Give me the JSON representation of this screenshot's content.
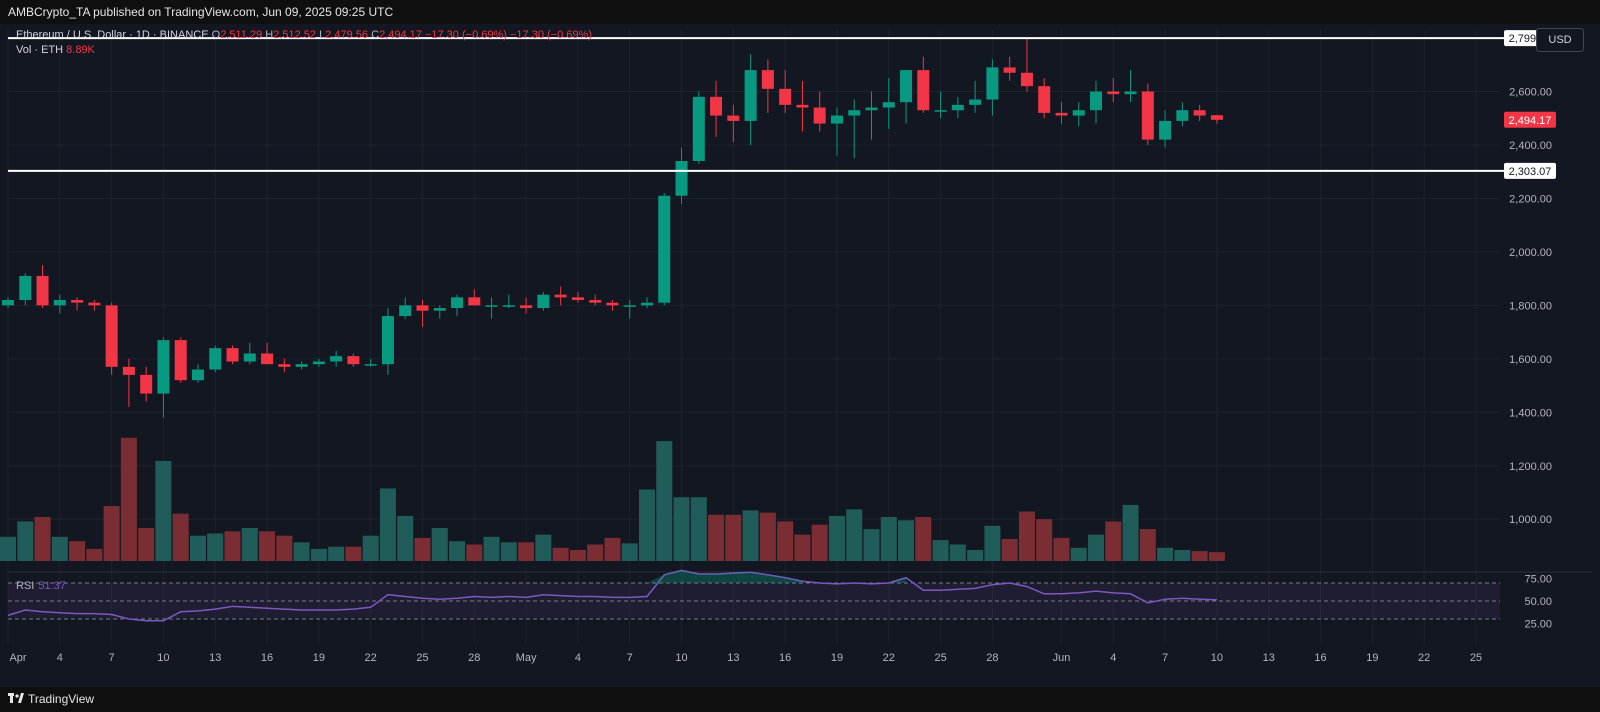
{
  "header": {
    "publisher": "AMBCrypto_TA published on TradingView.com, Jun 09, 2025 09:25 UTC"
  },
  "legend": {
    "symbol": "Ethereum / U.S. Dollar · 1D · BINANCE",
    "o_label": "O",
    "o": "2,511.29",
    "h_label": "H",
    "h": "2,512.52",
    "l_label": "L",
    "l": "2,479.56",
    "c_label": "C",
    "c": "2,494.17",
    "change1": "−17.30 (−0.69%)",
    "change2": "−17.30 (−0.69%)",
    "vol_label": "Vol · ETH",
    "vol_value": "8.89K"
  },
  "toolbar": {
    "currency": "USD"
  },
  "rsi": {
    "label": "RSI",
    "value": "51.37"
  },
  "footer": {
    "brand": "TradingView"
  },
  "colors": {
    "background": "#131722",
    "up": "#089981",
    "down": "#f23645",
    "up_volume": "#1f5c5a",
    "down_volume": "#7a2e33",
    "rsi_line": "#7e57c2",
    "grid": "#1e222d"
  },
  "chart_data": {
    "type": "candlestick",
    "symbol": "ETHUSD",
    "timeframe": "1D",
    "price_range": [
      840,
      2830
    ],
    "price_ticks": [
      1000,
      1200,
      1400,
      1600,
      1800,
      2000,
      2200,
      2400,
      2600
    ],
    "price_tick_labels": [
      "1,000.00",
      "1,200.00",
      "1,400.00",
      "1,600.00",
      "1,800.00",
      "2,000.00",
      "2,200.00",
      "2,400.00",
      "2,600.00"
    ],
    "horizontal_levels": [
      {
        "value": 2799.48,
        "label": "2,799.48"
      },
      {
        "value": 2303.07,
        "label": "2,303.07"
      }
    ],
    "last_price": {
      "value": 2494.17,
      "label": "2,494.17"
    },
    "x_ticks": [
      {
        "index": 0,
        "label": "Apr"
      },
      {
        "index": 3,
        "label": "4"
      },
      {
        "index": 6,
        "label": "7"
      },
      {
        "index": 9,
        "label": "10"
      },
      {
        "index": 12,
        "label": "13"
      },
      {
        "index": 15,
        "label": "16"
      },
      {
        "index": 18,
        "label": "19"
      },
      {
        "index": 21,
        "label": "22"
      },
      {
        "index": 24,
        "label": "25"
      },
      {
        "index": 27,
        "label": "28"
      },
      {
        "index": 30,
        "label": "May"
      },
      {
        "index": 33,
        "label": "4"
      },
      {
        "index": 36,
        "label": "7"
      },
      {
        "index": 39,
        "label": "10"
      },
      {
        "index": 42,
        "label": "13"
      },
      {
        "index": 45,
        "label": "16"
      },
      {
        "index": 48,
        "label": "19"
      },
      {
        "index": 51,
        "label": "22"
      },
      {
        "index": 54,
        "label": "25"
      },
      {
        "index": 57,
        "label": "28"
      },
      {
        "index": 61,
        "label": "Jun"
      },
      {
        "index": 64,
        "label": "4"
      },
      {
        "index": 67,
        "label": "7"
      },
      {
        "index": 70,
        "label": "10"
      },
      {
        "index": 73,
        "label": "13"
      },
      {
        "index": 76,
        "label": "16"
      },
      {
        "index": 79,
        "label": "19"
      },
      {
        "index": 82,
        "label": "22"
      },
      {
        "index": 85,
        "label": "25"
      }
    ],
    "ohlc": [
      [
        1800,
        1830,
        1790,
        1820
      ],
      [
        1820,
        1920,
        1800,
        1910
      ],
      [
        1910,
        1950,
        1790,
        1800
      ],
      [
        1800,
        1840,
        1770,
        1820
      ],
      [
        1820,
        1830,
        1780,
        1810
      ],
      [
        1810,
        1820,
        1780,
        1800
      ],
      [
        1800,
        1810,
        1540,
        1570
      ],
      [
        1570,
        1600,
        1420,
        1540
      ],
      [
        1540,
        1570,
        1440,
        1470
      ],
      [
        1470,
        1680,
        1380,
        1670
      ],
      [
        1670,
        1680,
        1510,
        1520
      ],
      [
        1520,
        1580,
        1510,
        1560
      ],
      [
        1560,
        1650,
        1550,
        1640
      ],
      [
        1640,
        1650,
        1580,
        1590
      ],
      [
        1590,
        1660,
        1580,
        1620
      ],
      [
        1620,
        1660,
        1580,
        1580
      ],
      [
        1580,
        1600,
        1550,
        1570
      ],
      [
        1570,
        1590,
        1560,
        1580
      ],
      [
        1580,
        1600,
        1570,
        1590
      ],
      [
        1590,
        1630,
        1570,
        1610
      ],
      [
        1610,
        1620,
        1570,
        1580
      ],
      [
        1580,
        1600,
        1570,
        1580
      ],
      [
        1580,
        1790,
        1540,
        1760
      ],
      [
        1760,
        1830,
        1750,
        1800
      ],
      [
        1800,
        1820,
        1720,
        1780
      ],
      [
        1780,
        1800,
        1750,
        1790
      ],
      [
        1790,
        1840,
        1760,
        1830
      ],
      [
        1830,
        1860,
        1800,
        1800
      ],
      [
        1800,
        1830,
        1750,
        1800
      ],
      [
        1800,
        1840,
        1790,
        1800
      ],
      [
        1800,
        1830,
        1770,
        1790
      ],
      [
        1790,
        1850,
        1780,
        1840
      ],
      [
        1840,
        1870,
        1800,
        1830
      ],
      [
        1830,
        1850,
        1810,
        1820
      ],
      [
        1820,
        1840,
        1800,
        1810
      ],
      [
        1810,
        1820,
        1780,
        1800
      ],
      [
        1800,
        1820,
        1750,
        1800
      ],
      [
        1800,
        1830,
        1790,
        1810
      ],
      [
        1810,
        2220,
        1800,
        2210
      ],
      [
        2210,
        2390,
        2180,
        2340
      ],
      [
        2340,
        2600,
        2330,
        2580
      ],
      [
        2580,
        2640,
        2430,
        2510
      ],
      [
        2510,
        2550,
        2410,
        2490
      ],
      [
        2490,
        2740,
        2400,
        2680
      ],
      [
        2680,
        2720,
        2520,
        2610
      ],
      [
        2610,
        2680,
        2520,
        2550
      ],
      [
        2550,
        2640,
        2450,
        2540
      ],
      [
        2540,
        2600,
        2450,
        2480
      ],
      [
        2480,
        2540,
        2360,
        2510
      ],
      [
        2510,
        2570,
        2350,
        2530
      ],
      [
        2530,
        2600,
        2420,
        2540
      ],
      [
        2540,
        2650,
        2460,
        2560
      ],
      [
        2560,
        2680,
        2480,
        2680
      ],
      [
        2680,
        2730,
        2520,
        2530
      ],
      [
        2530,
        2600,
        2500,
        2530
      ],
      [
        2530,
        2580,
        2500,
        2550
      ],
      [
        2550,
        2640,
        2520,
        2570
      ],
      [
        2570,
        2720,
        2510,
        2690
      ],
      [
        2690,
        2730,
        2640,
        2670
      ],
      [
        2670,
        2800,
        2600,
        2620
      ],
      [
        2620,
        2650,
        2500,
        2520
      ],
      [
        2520,
        2560,
        2480,
        2510
      ],
      [
        2510,
        2560,
        2470,
        2530
      ],
      [
        2530,
        2640,
        2480,
        2600
      ],
      [
        2600,
        2650,
        2560,
        2590
      ],
      [
        2590,
        2680,
        2560,
        2600
      ],
      [
        2600,
        2630,
        2400,
        2420
      ],
      [
        2420,
        2530,
        2390,
        2490
      ],
      [
        2490,
        2560,
        2470,
        2530
      ],
      [
        2530,
        2550,
        2490,
        2510
      ],
      [
        2511.29,
        2512.52,
        2479.56,
        2494.17
      ]
    ],
    "volume_heights": [
      0.22,
      0.36,
      0.4,
      0.22,
      0.18,
      0.11,
      0.5,
      1.12,
      0.3,
      0.91,
      0.43,
      0.23,
      0.25,
      0.27,
      0.3,
      0.27,
      0.23,
      0.17,
      0.11,
      0.13,
      0.13,
      0.23,
      0.66,
      0.41,
      0.21,
      0.3,
      0.18,
      0.15,
      0.22,
      0.17,
      0.17,
      0.24,
      0.12,
      0.1,
      0.15,
      0.21,
      0.16,
      0.65,
      1.09,
      0.58,
      0.58,
      0.42,
      0.42,
      0.46,
      0.44,
      0.36,
      0.24,
      0.33,
      0.41,
      0.47,
      0.29,
      0.4,
      0.37,
      0.4,
      0.19,
      0.15,
      0.1,
      0.32,
      0.2,
      0.45,
      0.38,
      0.21,
      0.12,
      0.24,
      0.36,
      0.51,
      0.29,
      0.12,
      0.1,
      0.09,
      0.08
    ],
    "rsi": {
      "range": [
        0,
        100
      ],
      "levels": [
        30,
        50,
        70
      ],
      "tick_labels": [
        "75.00",
        "50.00",
        "25.00"
      ],
      "values": [
        34,
        40,
        38,
        37,
        36,
        36,
        35,
        30,
        28,
        28,
        38,
        39,
        41,
        44,
        43,
        42,
        41,
        40,
        40,
        40,
        41,
        43,
        57,
        55,
        53,
        52,
        53,
        55,
        54,
        55,
        54,
        57,
        56,
        55,
        55,
        54,
        54,
        55,
        79,
        84,
        80,
        80,
        81,
        82,
        79,
        76,
        72,
        70,
        69,
        70,
        69,
        70,
        76,
        62,
        62,
        63,
        64,
        68,
        70,
        66,
        58,
        58,
        59,
        61,
        59,
        58,
        48,
        52,
        53,
        52,
        51.37
      ]
    }
  }
}
